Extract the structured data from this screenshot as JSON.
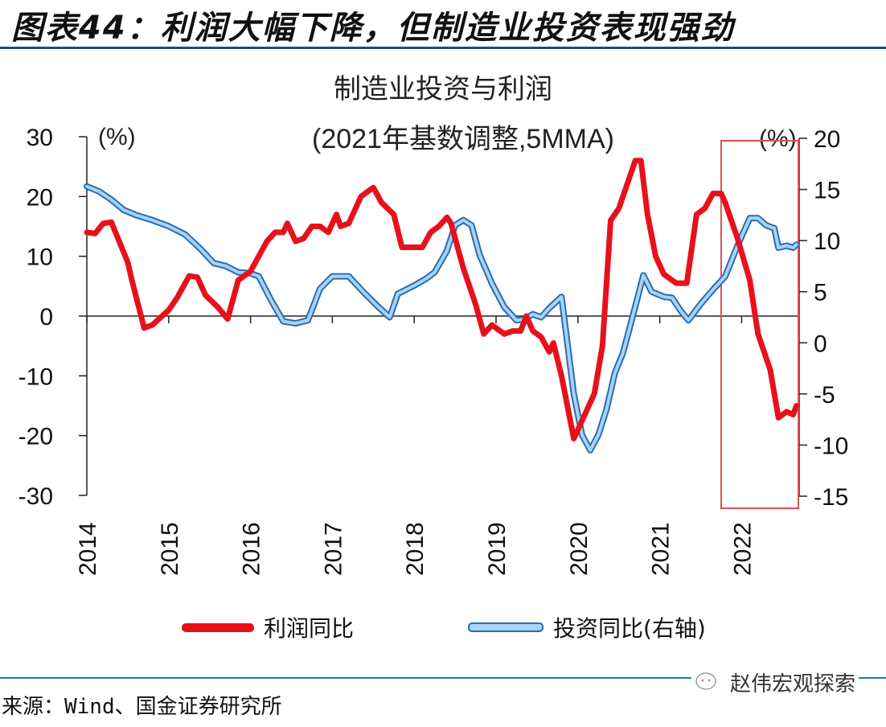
{
  "figure": {
    "title": "图表44：利润大幅下降，但制造业投资表现强劲",
    "source": "来源：Wind、国金证券研究所",
    "watermark": "赵伟宏观探索",
    "watermark_icon": "wechat-icon"
  },
  "colors": {
    "profit": "#e8111b",
    "investment_fill": "#a6d4fa",
    "investment_edge": "#2b6cb0",
    "highlight_box": "#d9534f"
  },
  "chart_data": {
    "type": "line",
    "title": "制造业投资与利润",
    "subtitle": "(2021年基数调整,5MMA)",
    "xlabel": "",
    "ylabel_left": "(%)",
    "ylabel_right": "(%)",
    "x_ticks": [
      "2014",
      "2015",
      "2016",
      "2017",
      "2018",
      "2019",
      "2020",
      "2021",
      "2022"
    ],
    "xlim": [
      2014.0,
      2022.67
    ],
    "ylim_left": [
      -30,
      30
    ],
    "yticks_left": [
      "30",
      "20",
      "10",
      "0",
      "-10",
      "-20",
      "-30"
    ],
    "ylim_right": [
      -15,
      20
    ],
    "yticks_right": [
      "20",
      "15",
      "10",
      "5",
      "0",
      "-5",
      "-10",
      "-15"
    ],
    "grid": false,
    "legend_position": "bottom",
    "highlight_region": {
      "x_from": 2021.75,
      "x_to": 2022.67
    },
    "series": [
      {
        "name": "利润同比",
        "axis": "left",
        "x": [
          2014.0,
          2014.1,
          2014.2,
          2014.3,
          2014.5,
          2014.55,
          2014.7,
          2014.8,
          2015.0,
          2015.1,
          2015.25,
          2015.35,
          2015.45,
          2015.6,
          2015.72,
          2015.85,
          2016.0,
          2016.1,
          2016.2,
          2016.3,
          2016.4,
          2016.45,
          2016.55,
          2016.65,
          2016.75,
          2016.85,
          2016.95,
          2017.05,
          2017.1,
          2017.2,
          2017.35,
          2017.5,
          2017.6,
          2017.75,
          2017.85,
          2018.0,
          2018.1,
          2018.2,
          2018.3,
          2018.4,
          2018.45,
          2018.6,
          2018.75,
          2018.85,
          2018.95,
          2019.1,
          2019.2,
          2019.3,
          2019.37,
          2019.45,
          2019.55,
          2019.65,
          2019.7,
          2019.8,
          2019.95,
          2020.1,
          2020.2,
          2020.3,
          2020.4,
          2020.5,
          2020.6,
          2020.7,
          2020.77,
          2020.85,
          2020.95,
          2021.05,
          2021.2,
          2021.33,
          2021.45,
          2021.55,
          2021.65,
          2021.75,
          2021.8,
          2021.95,
          2022.1,
          2022.2,
          2022.35,
          2022.45,
          2022.55,
          2022.63,
          2022.67
        ],
        "values": [
          14,
          13.8,
          15.5,
          15.7,
          9,
          6,
          -2,
          -1.5,
          1,
          3,
          6.7,
          6.5,
          3.5,
          1.5,
          -0.5,
          6,
          7.5,
          10,
          12.5,
          14,
          14,
          15.5,
          12.5,
          13,
          15,
          15,
          14,
          17,
          15,
          15.5,
          20,
          21.5,
          19,
          17,
          11.5,
          11.5,
          11.5,
          14,
          15,
          16.5,
          15.5,
          8,
          2,
          -3,
          -1.5,
          -3,
          -2.5,
          -2.5,
          0,
          -2.5,
          -3.5,
          -6,
          -4.5,
          -10,
          -20.5,
          -16,
          -13,
          -5,
          16,
          18,
          22,
          26,
          26,
          17,
          10,
          7,
          5.5,
          5.5,
          17,
          18,
          20.5,
          20.5,
          19,
          13,
          6,
          -3,
          -9,
          -17,
          -16,
          -16.5,
          -15
        ]
      },
      {
        "name": "投资同比(右轴)",
        "axis": "right",
        "x": [
          2014.0,
          2014.15,
          2014.3,
          2014.45,
          2014.6,
          2014.8,
          2015.0,
          2015.2,
          2015.4,
          2015.55,
          2015.7,
          2015.85,
          2016.0,
          2016.1,
          2016.25,
          2016.4,
          2016.55,
          2016.7,
          2016.85,
          2017.0,
          2017.2,
          2017.4,
          2017.55,
          2017.7,
          2017.8,
          2018.0,
          2018.15,
          2018.25,
          2018.4,
          2018.5,
          2018.6,
          2018.7,
          2018.8,
          2018.95,
          2019.1,
          2019.25,
          2019.35,
          2019.45,
          2019.55,
          2019.65,
          2019.8,
          2019.95,
          2020.05,
          2020.15,
          2020.25,
          2020.35,
          2020.45,
          2020.55,
          2020.65,
          2020.8,
          2020.9,
          2021.05,
          2021.15,
          2021.25,
          2021.35,
          2021.5,
          2021.65,
          2021.8,
          2021.95,
          2022.1,
          2022.2,
          2022.3,
          2022.4,
          2022.45,
          2022.55,
          2022.63,
          2022.67
        ],
        "values": [
          15.3,
          14.8,
          14,
          13,
          12.5,
          12,
          11.4,
          10.6,
          9.1,
          7.8,
          7.5,
          6.9,
          6.8,
          6.5,
          4.2,
          2.1,
          1.9,
          2.2,
          5.3,
          6.5,
          6.5,
          4.8,
          3.6,
          2.5,
          4.8,
          5.6,
          6.3,
          6.9,
          9,
          11.5,
          12,
          11.5,
          8.6,
          5.8,
          3.5,
          2.2,
          2.3,
          2.8,
          2.5,
          3.4,
          4.5,
          -5,
          -9,
          -10.5,
          -9,
          -6.5,
          -3,
          -1,
          2,
          6.6,
          5,
          4.5,
          4.4,
          3.2,
          2.2,
          3.8,
          5.2,
          6.5,
          9.5,
          12.2,
          12.2,
          11.5,
          11.2,
          9.3,
          9.5,
          9.3,
          9.6
        ]
      }
    ]
  }
}
